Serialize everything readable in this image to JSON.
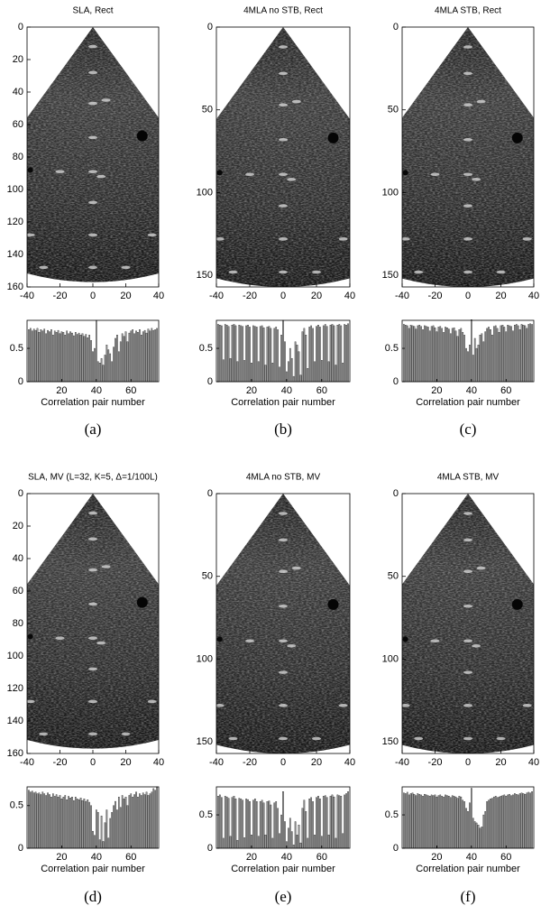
{
  "captions": [
    "(a)",
    "(b)",
    "(c)",
    "(d)",
    "(e)",
    "(f)"
  ],
  "chart_data": [
    {
      "type": "image",
      "title": "SLA, Rect",
      "xlim": [
        -40,
        40
      ],
      "ylim": [
        0,
        160
      ],
      "xticks": [
        -40,
        -20,
        0,
        20,
        40
      ],
      "yticks": [
        0,
        20,
        40,
        60,
        80,
        100,
        120,
        140,
        160
      ]
    },
    {
      "type": "image",
      "title": "4MLA no STB, Rect",
      "xlim": [
        -40,
        40
      ],
      "ylim": [
        0,
        157
      ],
      "xticks": [
        -40,
        -20,
        0,
        20,
        40
      ],
      "yticks": [
        0,
        50,
        100,
        150
      ]
    },
    {
      "type": "image",
      "title": "4MLA STB, Rect",
      "xlim": [
        -40,
        40
      ],
      "ylim": [
        0,
        157
      ],
      "xticks": [
        -40,
        -20,
        0,
        20,
        40
      ],
      "yticks": [
        0,
        50,
        100,
        150
      ]
    },
    {
      "type": "bar",
      "xlabel": "Correlation pair number",
      "xlim": [
        0,
        76
      ],
      "xticks": [
        20,
        40,
        60
      ],
      "ylim": [
        0,
        0.92
      ],
      "yticks": [
        0,
        0.5
      ],
      "color": "#9a9a9a",
      "values": [
        0.78,
        0.8,
        0.76,
        0.79,
        0.77,
        0.8,
        0.74,
        0.78,
        0.76,
        0.79,
        0.72,
        0.77,
        0.75,
        0.78,
        0.7,
        0.76,
        0.74,
        0.77,
        0.72,
        0.75,
        0.74,
        0.7,
        0.76,
        0.72,
        0.75,
        0.73,
        0.69,
        0.74,
        0.71,
        0.73,
        0.7,
        0.72,
        0.68,
        0.71,
        0.66,
        0.7,
        0.62,
        0.45,
        0.5,
        0.92,
        0.3,
        0.28,
        0.35,
        0.25,
        0.4,
        0.55,
        0.48,
        0.42,
        0.3,
        0.52,
        0.65,
        0.7,
        0.45,
        0.6,
        0.72,
        0.68,
        0.75,
        0.6,
        0.73,
        0.76,
        0.78,
        0.72,
        0.76,
        0.74,
        0.78,
        0.7,
        0.75,
        0.77,
        0.73,
        0.79,
        0.76,
        0.8,
        0.77,
        0.78,
        0.8
      ]
    },
    {
      "type": "bar",
      "xlabel": "Correlation pair number",
      "xlim": [
        0,
        76
      ],
      "xticks": [
        20,
        40,
        60
      ],
      "ylim": [
        0,
        0.92
      ],
      "yticks": [
        0,
        0.5
      ],
      "color": "#9a9a9a",
      "values": [
        0.86,
        0.85,
        0.84,
        0.33,
        0.86,
        0.85,
        0.83,
        0.35,
        0.85,
        0.86,
        0.84,
        0.3,
        0.85,
        0.84,
        0.83,
        0.32,
        0.84,
        0.85,
        0.82,
        0.28,
        0.84,
        0.83,
        0.82,
        0.3,
        0.83,
        0.84,
        0.81,
        0.25,
        0.82,
        0.83,
        0.8,
        0.28,
        0.8,
        0.82,
        0.78,
        0.22,
        0.7,
        0.92,
        0.6,
        0.15,
        0.3,
        0.5,
        0.35,
        0.08,
        0.6,
        0.55,
        0.45,
        0.1,
        0.75,
        0.8,
        0.7,
        0.2,
        0.82,
        0.84,
        0.8,
        0.3,
        0.83,
        0.85,
        0.82,
        0.32,
        0.84,
        0.86,
        0.83,
        0.3,
        0.85,
        0.86,
        0.84,
        0.25,
        0.85,
        0.86,
        0.84,
        0.28,
        0.86,
        0.85,
        0.87
      ]
    },
    {
      "type": "bar",
      "xlabel": "Correlation pair number",
      "xlim": [
        0,
        76
      ],
      "xticks": [
        20,
        40,
        60
      ],
      "ylim": [
        0,
        0.92
      ],
      "yticks": [
        0,
        0.5
      ],
      "color": "#9a9a9a",
      "values": [
        0.86,
        0.85,
        0.84,
        0.8,
        0.85,
        0.84,
        0.83,
        0.79,
        0.84,
        0.85,
        0.83,
        0.78,
        0.84,
        0.83,
        0.82,
        0.76,
        0.83,
        0.84,
        0.81,
        0.75,
        0.82,
        0.83,
        0.8,
        0.74,
        0.82,
        0.81,
        0.79,
        0.72,
        0.8,
        0.81,
        0.76,
        0.68,
        0.78,
        0.8,
        0.74,
        0.7,
        0.5,
        0.45,
        0.55,
        0.93,
        0.4,
        0.65,
        0.5,
        0.55,
        0.7,
        0.72,
        0.6,
        0.75,
        0.8,
        0.82,
        0.78,
        0.7,
        0.83,
        0.84,
        0.8,
        0.74,
        0.84,
        0.85,
        0.82,
        0.75,
        0.85,
        0.84,
        0.83,
        0.76,
        0.85,
        0.86,
        0.84,
        0.78,
        0.86,
        0.85,
        0.84,
        0.8,
        0.86,
        0.87,
        0.86
      ]
    },
    {
      "type": "image",
      "title": "SLA, MV (L=32, K=5, Δ=1/100L)",
      "xlim": [
        -40,
        40
      ],
      "ylim": [
        0,
        160
      ],
      "xticks": [
        -40,
        -20,
        0,
        20,
        40
      ],
      "yticks": [
        0,
        20,
        40,
        60,
        80,
        100,
        120,
        140,
        160
      ]
    },
    {
      "type": "image",
      "title": "4MLA no STB, MV",
      "xlim": [
        -40,
        40
      ],
      "ylim": [
        0,
        157
      ],
      "xticks": [
        -40,
        -20,
        0,
        20,
        40
      ],
      "yticks": [
        0,
        50,
        100,
        150
      ]
    },
    {
      "type": "image",
      "title": "4MLA STB, MV",
      "xlim": [
        -40,
        40
      ],
      "ylim": [
        0,
        157
      ],
      "xticks": [
        -40,
        -20,
        0,
        20,
        40
      ],
      "yticks": [
        0,
        50,
        100,
        150
      ]
    },
    {
      "type": "bar",
      "xlabel": "Correlation pair number",
      "xlim": [
        0,
        76
      ],
      "xticks": [
        20,
        40,
        60
      ],
      "ylim": [
        0,
        0.72
      ],
      "yticks": [
        0,
        0.5
      ],
      "color": "#9a9a9a",
      "values": [
        0.68,
        0.66,
        0.67,
        0.65,
        0.66,
        0.64,
        0.65,
        0.63,
        0.66,
        0.64,
        0.62,
        0.65,
        0.63,
        0.6,
        0.64,
        0.61,
        0.63,
        0.6,
        0.62,
        0.58,
        0.6,
        0.62,
        0.57,
        0.61,
        0.59,
        0.6,
        0.56,
        0.6,
        0.58,
        0.57,
        0.59,
        0.56,
        0.58,
        0.55,
        0.57,
        0.54,
        0.5,
        0.2,
        0.15,
        0.45,
        0.42,
        0.1,
        0.38,
        0.08,
        0.3,
        0.45,
        0.12,
        0.35,
        0.42,
        0.5,
        0.55,
        0.45,
        0.6,
        0.48,
        0.62,
        0.58,
        0.6,
        0.5,
        0.62,
        0.64,
        0.6,
        0.63,
        0.66,
        0.6,
        0.64,
        0.62,
        0.65,
        0.63,
        0.66,
        0.62,
        0.64,
        0.66,
        0.7,
        0.68,
        0.72
      ]
    },
    {
      "type": "bar",
      "xlabel": "Correlation pair number",
      "xlim": [
        0,
        76
      ],
      "xticks": [
        20,
        40,
        60
      ],
      "ylim": [
        0,
        0.92
      ],
      "yticks": [
        0,
        0.5
      ],
      "color": "#9a9a9a",
      "values": [
        0.78,
        0.8,
        0.76,
        0.15,
        0.78,
        0.77,
        0.75,
        0.18,
        0.76,
        0.78,
        0.74,
        0.12,
        0.75,
        0.74,
        0.72,
        0.16,
        0.74,
        0.73,
        0.7,
        0.2,
        0.72,
        0.74,
        0.7,
        0.18,
        0.7,
        0.72,
        0.68,
        0.2,
        0.7,
        0.71,
        0.65,
        0.15,
        0.68,
        0.7,
        0.6,
        0.22,
        0.5,
        0.85,
        0.4,
        0.1,
        0.3,
        0.45,
        0.25,
        0.05,
        0.4,
        0.2,
        0.35,
        0.08,
        0.6,
        0.72,
        0.55,
        0.15,
        0.74,
        0.76,
        0.7,
        0.2,
        0.76,
        0.78,
        0.74,
        0.18,
        0.78,
        0.79,
        0.76,
        0.2,
        0.78,
        0.8,
        0.77,
        0.15,
        0.8,
        0.79,
        0.78,
        0.22,
        0.8,
        0.82,
        0.85
      ]
    },
    {
      "type": "bar",
      "xlabel": "Correlation pair number",
      "xlim": [
        0,
        76
      ],
      "xticks": [
        20,
        40,
        60
      ],
      "ylim": [
        0,
        0.92
      ],
      "yticks": [
        0,
        0.5
      ],
      "color": "#9a9a9a",
      "values": [
        0.83,
        0.82,
        0.84,
        0.8,
        0.82,
        0.83,
        0.81,
        0.79,
        0.82,
        0.81,
        0.8,
        0.78,
        0.81,
        0.8,
        0.79,
        0.78,
        0.8,
        0.79,
        0.8,
        0.77,
        0.79,
        0.8,
        0.78,
        0.77,
        0.8,
        0.79,
        0.78,
        0.76,
        0.79,
        0.78,
        0.77,
        0.75,
        0.78,
        0.77,
        0.72,
        0.7,
        0.6,
        0.55,
        0.68,
        0.9,
        0.45,
        0.4,
        0.38,
        0.35,
        0.3,
        0.32,
        0.5,
        0.55,
        0.7,
        0.72,
        0.74,
        0.75,
        0.77,
        0.78,
        0.76,
        0.77,
        0.78,
        0.79,
        0.8,
        0.78,
        0.8,
        0.81,
        0.79,
        0.8,
        0.82,
        0.81,
        0.8,
        0.82,
        0.83,
        0.82,
        0.81,
        0.83,
        0.84,
        0.83,
        0.85
      ]
    }
  ]
}
